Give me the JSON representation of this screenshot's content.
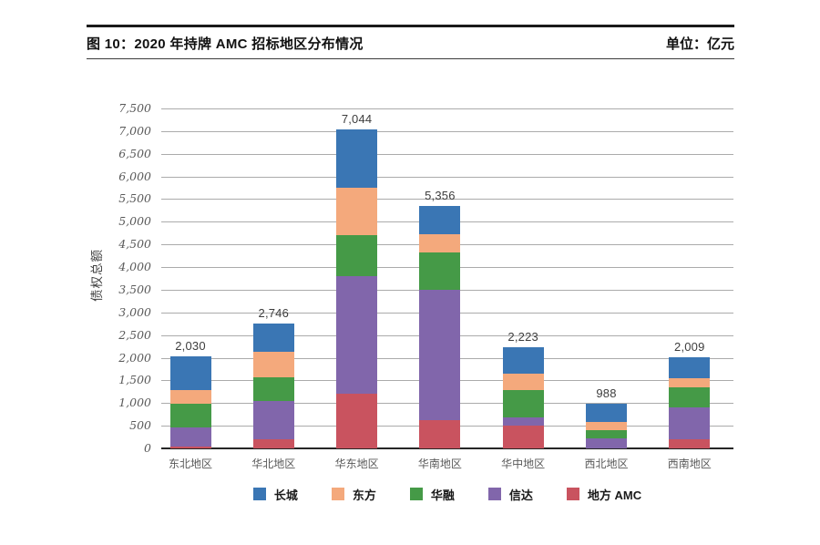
{
  "header": {
    "title": "图 10：2020 年持牌 AMC 招标地区分布情况",
    "unit_label": "单位：亿元"
  },
  "chart_data": {
    "type": "bar",
    "stacked": true,
    "title": "图 10：2020 年持牌 AMC 招标地区分布情况",
    "unit": "亿元",
    "categories": [
      "东北地区",
      "华北地区",
      "华东地区",
      "华南地区",
      "华中地区",
      "西北地区",
      "西南地区"
    ],
    "series": [
      {
        "name": "长城",
        "color": "#3a76b4",
        "values": [
          740,
          616,
          1294,
          626,
          568,
          410,
          459
        ]
      },
      {
        "name": "东方",
        "color": "#f4a97c",
        "values": [
          310,
          570,
          1050,
          400,
          370,
          180,
          210
        ]
      },
      {
        "name": "华融",
        "color": "#459a47",
        "values": [
          510,
          510,
          900,
          840,
          600,
          185,
          430
        ]
      },
      {
        "name": "信达",
        "color": "#8166ab",
        "values": [
          435,
          850,
          2600,
          2860,
          190,
          213,
          710
        ]
      },
      {
        "name": "地方 AMC",
        "color": "#c9535f",
        "values": [
          35,
          200,
          1200,
          630,
          495,
          0,
          200
        ]
      }
    ],
    "stack_order_bottom_to_top": [
      "地方 AMC",
      "信达",
      "华融",
      "东方",
      "长城"
    ],
    "totals": [
      2030,
      2746,
      7044,
      5356,
      2223,
      988,
      2009
    ],
    "total_labels": [
      "2,030",
      "2,746",
      "7,044",
      "5,356",
      "2,223",
      "988",
      "2,009"
    ],
    "ylabel": "债权总额",
    "xlabel": "",
    "ylim": [
      0,
      7500
    ],
    "ytick_step": 500,
    "grid": true,
    "legend_position": "bottom"
  }
}
